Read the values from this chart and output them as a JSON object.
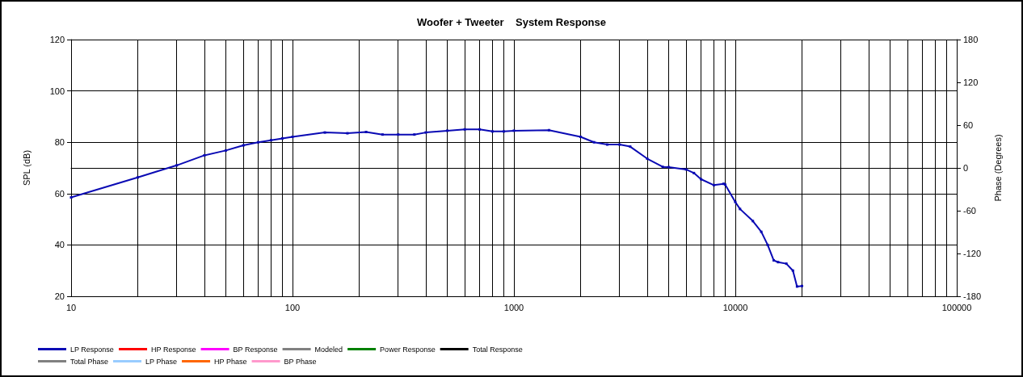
{
  "chart_data": {
    "type": "line",
    "title": "Woofer + Tweeter    System Response",
    "xlabel": null,
    "ylabel": "SPL (dB)",
    "y2label": "Phase (Degrees)",
    "log": "x",
    "grid": true,
    "legend": "bottom left",
    "marker": "square",
    "line_style": "solid",
    "xlim": [
      10,
      100000
    ],
    "xticks": [
      10,
      {
        "value": 20,
        "label": null
      },
      {
        "value": 30,
        "label": null
      },
      {
        "value": 40,
        "label": null
      },
      {
        "value": 50,
        "label": null
      },
      {
        "value": 60,
        "label": null
      },
      {
        "value": 70,
        "label": null
      },
      {
        "value": 80,
        "label": null
      },
      {
        "value": 90,
        "label": null
      },
      100,
      {
        "value": 200,
        "label": null
      },
      {
        "value": 300,
        "label": null
      },
      {
        "value": 400,
        "label": null
      },
      {
        "value": 500,
        "label": null
      },
      {
        "value": 600,
        "label": null
      },
      {
        "value": 700,
        "label": null
      },
      {
        "value": 800,
        "label": null
      },
      {
        "value": 900,
        "label": null
      },
      1000,
      {
        "value": 2000,
        "label": null
      },
      {
        "value": 3000,
        "label": null
      },
      {
        "value": 4000,
        "label": null
      },
      {
        "value": 5000,
        "label": null
      },
      {
        "value": 6000,
        "label": null
      },
      {
        "value": 7000,
        "label": null
      },
      {
        "value": 8000,
        "label": null
      },
      {
        "value": 9000,
        "label": null
      },
      10000,
      {
        "value": 20000,
        "label": null
      },
      {
        "value": 30000,
        "label": null
      },
      {
        "value": 40000,
        "label": null
      },
      {
        "value": 50000,
        "label": null
      },
      {
        "value": 60000,
        "label": null
      },
      {
        "value": 70000,
        "label": null
      },
      {
        "value": 80000,
        "label": null
      },
      {
        "value": 90000,
        "label": null
      },
      100000
    ],
    "ylim": [
      20,
      120
    ],
    "yticks": [
      20,
      40,
      60,
      80,
      100,
      120
    ],
    "y2lim": [
      -180,
      180
    ],
    "y2ticks": [
      -180,
      -120,
      -60,
      0,
      60,
      120,
      180
    ],
    "series": [
      {
        "name": "LP Response",
        "color": "#0a0ab4",
        "x": [
          10,
          20,
          30,
          40,
          50,
          60,
          70,
          80,
          90,
          100,
          140,
          177,
          215,
          255,
          300,
          355,
          400,
          500,
          600,
          700,
          800,
          900,
          1000,
          1440,
          2000,
          2300,
          2640,
          3000,
          3350,
          4000,
          4700,
          5000,
          6000,
          6500,
          7000,
          8000,
          8850,
          9000,
          10000,
          10500,
          12000,
          13100,
          14000,
          14900,
          15600,
          17000,
          18200,
          19000,
          20000
        ],
        "values": [
          58.5,
          66.3,
          71,
          74.9,
          76.8,
          78.8,
          80,
          80.8,
          81.5,
          82.1,
          83.8,
          83.5,
          84,
          83,
          83,
          83,
          83.8,
          84.5,
          85,
          85,
          84.2,
          84.2,
          84.5,
          84.7,
          82.1,
          80,
          79.1,
          79.1,
          78.3,
          73.6,
          70.4,
          70.3,
          69.4,
          68,
          65.6,
          63.3,
          63.8,
          63.5,
          56.7,
          54,
          49.3,
          45.1,
          40,
          34,
          33.3,
          32.7,
          30,
          23.8,
          24
        ]
      },
      {
        "name": "HP Response",
        "color": "#ff0000"
      },
      {
        "name": "BP Response",
        "color": "#ff00ff"
      },
      {
        "name": "Modeled",
        "color": "#808080"
      },
      {
        "name": "Power Response",
        "color": "#008000"
      },
      {
        "name": "Total Response",
        "color": "#000000"
      },
      {
        "name": "Total Phase",
        "color": "#808080"
      },
      {
        "name": "LP Phase",
        "color": "#99ccff"
      },
      {
        "name": "HP Phase",
        "color": "#ff6600"
      },
      {
        "name": "BP Phase",
        "color": "#ff99cc"
      }
    ]
  }
}
